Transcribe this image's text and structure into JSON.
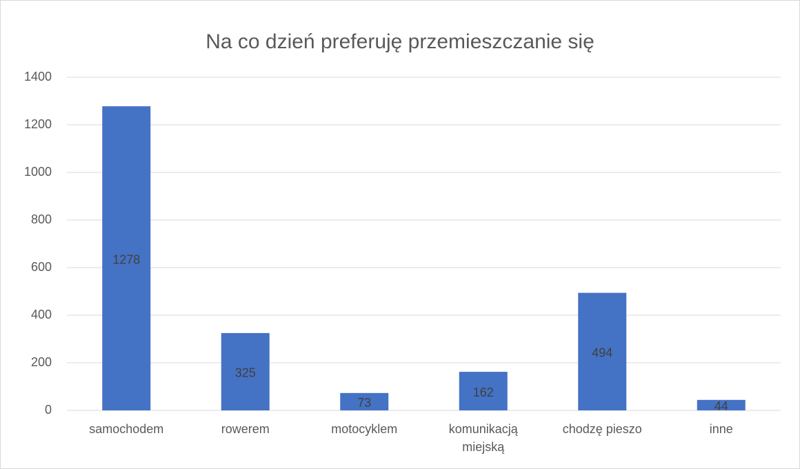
{
  "chart_data": {
    "type": "bar",
    "title": "Na co dzień preferuję przemieszczanie się",
    "categories": [
      "samochodem",
      "rowerem",
      "motocyklem",
      "komunikacją miejską",
      "chodzę pieszo",
      "inne"
    ],
    "values": [
      1278,
      325,
      73,
      162,
      494,
      44
    ],
    "color": "#4472c4",
    "ylim": [
      0,
      1400
    ],
    "yticks": [
      0,
      200,
      400,
      600,
      800,
      1000,
      1200,
      1400
    ],
    "grid": true
  }
}
